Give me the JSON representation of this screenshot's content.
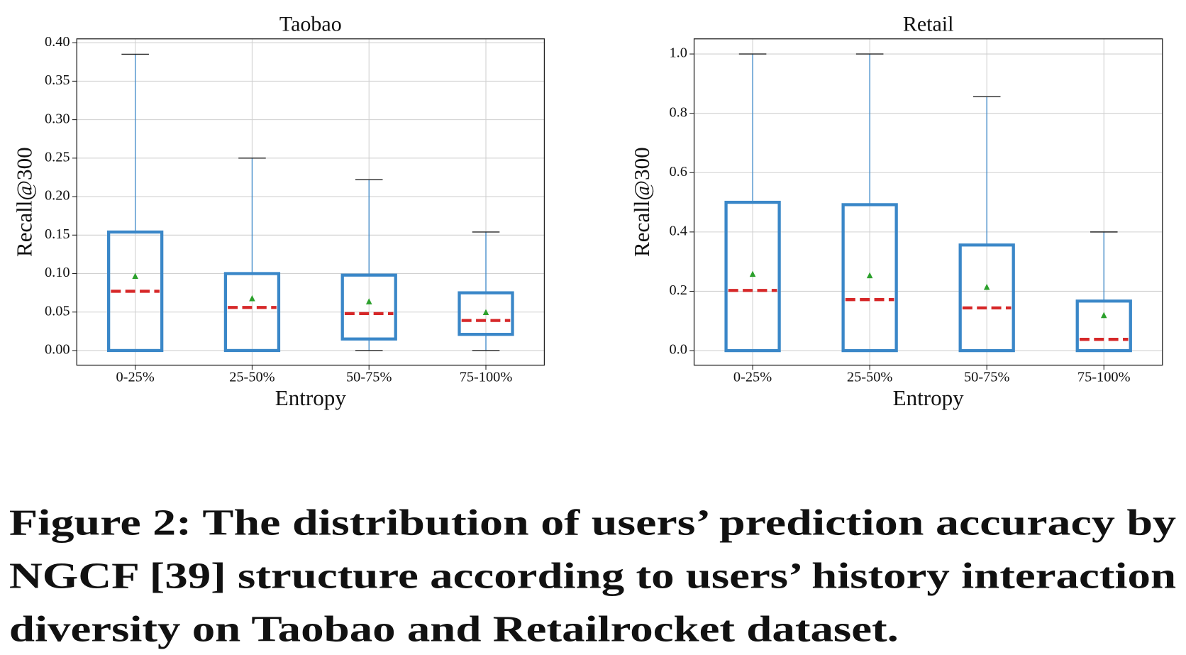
{
  "chart_data": [
    {
      "type": "box",
      "title": "Taobao",
      "x_label": "Entropy",
      "y_label": "Recall@300",
      "categories": [
        "0-25%",
        "25-50%",
        "50-75%",
        "75-100%"
      ],
      "boxes": [
        {
          "whislo": 0,
          "q1": 0,
          "med": 0.077,
          "q3": 0.154,
          "whishi": 0.385,
          "mean": 0.097
        },
        {
          "whislo": 0,
          "q1": 0,
          "med": 0.056,
          "q3": 0.1,
          "whishi": 0.25,
          "mean": 0.068
        },
        {
          "whislo": 0,
          "q1": 0.015,
          "med": 0.048,
          "q3": 0.098,
          "whishi": 0.222,
          "mean": 0.064
        },
        {
          "whislo": 0,
          "q1": 0.021,
          "med": 0.039,
          "q3": 0.075,
          "whishi": 0.154,
          "mean": 0.05
        }
      ],
      "ylim": [
        -0.019,
        0.405
      ],
      "yticks": [
        {
          "value": 0,
          "label": "0.00"
        },
        {
          "value": 0.05,
          "label": "0.05"
        },
        {
          "value": 0.1,
          "label": "0.10"
        },
        {
          "value": 0.15,
          "label": "0.15"
        },
        {
          "value": 0.2,
          "label": "0.20"
        },
        {
          "value": 0.25,
          "label": "0.25"
        },
        {
          "value": 0.3,
          "label": "0.30"
        },
        {
          "value": 0.35,
          "label": "0.35"
        },
        {
          "value": 0.4,
          "label": "0.40"
        }
      ],
      "grid": true,
      "box_color": "#3a87c8",
      "median_color": "#d62728",
      "mean_color": "#2ca02c"
    },
    {
      "type": "box",
      "title": "Retail",
      "x_label": "Entropy",
      "y_label": "Recall@300",
      "categories": [
        "0-25%",
        "25-50%",
        "50-75%",
        "75-100%"
      ],
      "boxes": [
        {
          "whislo": 0,
          "q1": 0,
          "med": 0.203,
          "q3": 0.5,
          "whishi": 1,
          "mean": 0.259
        },
        {
          "whislo": 0,
          "q1": 0,
          "med": 0.172,
          "q3": 0.492,
          "whishi": 1,
          "mean": 0.254
        },
        {
          "whislo": 0,
          "q1": 0,
          "med": 0.144,
          "q3": 0.356,
          "whishi": 0.856,
          "mean": 0.215
        },
        {
          "whislo": 0,
          "q1": 0,
          "med": 0.038,
          "q3": 0.167,
          "whishi": 0.4,
          "mean": 0.12
        }
      ],
      "ylim": [
        -0.049,
        1.051
      ],
      "yticks": [
        {
          "value": 0,
          "label": "0.0"
        },
        {
          "value": 0.2,
          "label": "0.2"
        },
        {
          "value": 0.4,
          "label": "0.4"
        },
        {
          "value": 0.6,
          "label": "0.6"
        },
        {
          "value": 0.8,
          "label": "0.8"
        },
        {
          "value": 1,
          "label": "1.0"
        }
      ],
      "grid": true,
      "box_color": "#3a87c8",
      "median_color": "#d62728",
      "mean_color": "#2ca02c"
    }
  ],
  "caption": [
    "Figure 2: The distribution of users’ prediction accuracy by",
    "NGCF [39] structure according to users’ history interaction",
    "diversity on Taobao and Retailrocket dataset."
  ]
}
